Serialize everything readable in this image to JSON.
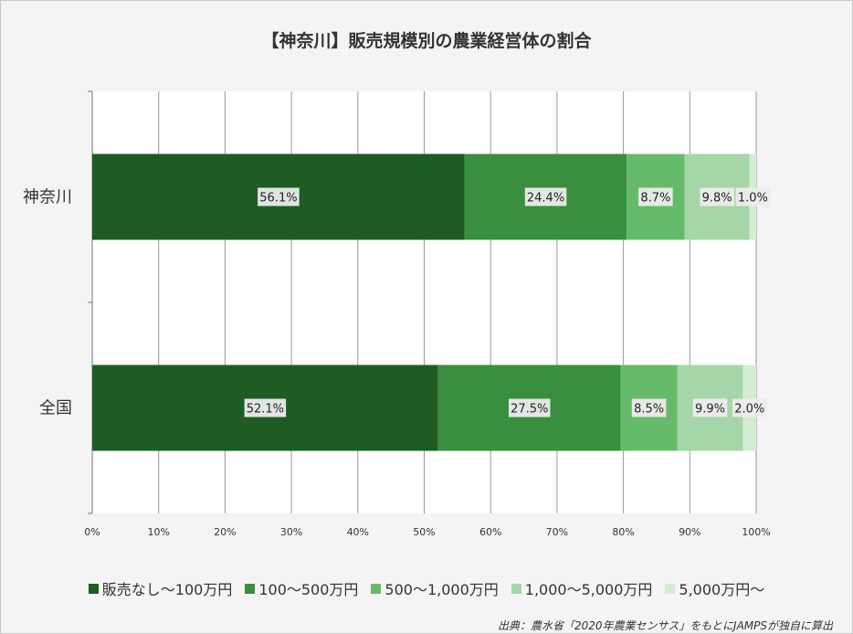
{
  "chart_data": {
    "type": "bar",
    "orientation": "horizontal",
    "stacked": true,
    "title": "【神奈川】販売規模別の農業経営体の割合",
    "categories": [
      "神奈川",
      "全国"
    ],
    "series": [
      {
        "name": "販売なし～100万円",
        "values": [
          56.1,
          52.1
        ],
        "labels": [
          "56.1%",
          "52.1%"
        ],
        "color": "#1e5c23"
      },
      {
        "name": "100～500万円",
        "values": [
          24.4,
          27.5
        ],
        "labels": [
          "24.4%",
          "27.5%"
        ],
        "color": "#3a8f3f"
      },
      {
        "name": "500～1,000万円",
        "values": [
          8.7,
          8.5
        ],
        "labels": [
          "8.7%",
          "8.5%"
        ],
        "color": "#66bb6a"
      },
      {
        "name": "1,000～5,000万円",
        "values": [
          9.8,
          9.9
        ],
        "labels": [
          "9.8%",
          "9.9%"
        ],
        "color": "#a5d6a7"
      },
      {
        "name": "5,000万円～",
        "values": [
          1.0,
          2.0
        ],
        "labels": [
          "1.0%",
          "2.0%"
        ],
        "color": "#d4ecd4"
      }
    ],
    "xlim": [
      0,
      100
    ],
    "x_ticks": [
      "0%",
      "10%",
      "20%",
      "30%",
      "40%",
      "50%",
      "60%",
      "70%",
      "80%",
      "90%",
      "100%"
    ],
    "grid": true,
    "legend_position": "bottom"
  },
  "source": "出典：農水省「2020年農業センサス」をもとにJAMPSが独自に算出"
}
